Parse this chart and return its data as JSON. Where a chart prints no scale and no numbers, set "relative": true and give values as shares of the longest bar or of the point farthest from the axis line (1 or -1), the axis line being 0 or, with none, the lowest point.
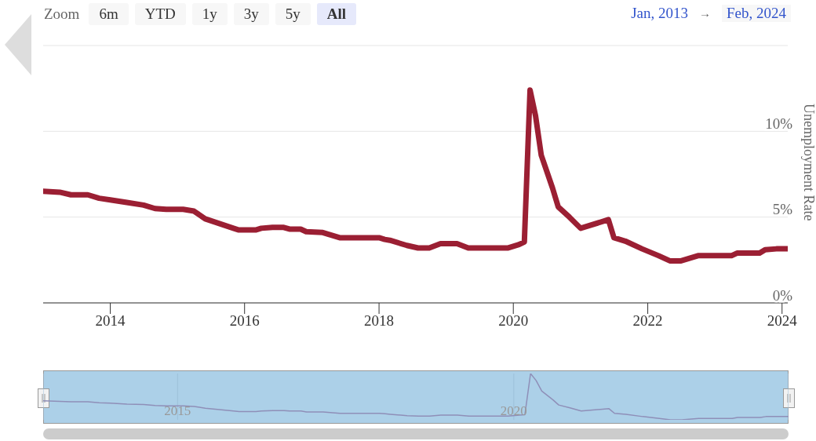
{
  "chart_data": [
    {
      "type": "line",
      "ylabel": "Unemployment Rate",
      "annotations": [
        "Zoom",
        "6m",
        "YTD",
        "1y",
        "3y",
        "5y",
        "All",
        "Jan, 2013",
        "→",
        "Feb, 2024"
      ],
      "x": [
        "2013-01",
        "2013-04",
        "2013-06",
        "2013-09",
        "2013-11",
        "2014-01",
        "2014-04",
        "2014-07",
        "2014-09",
        "2014-11",
        "2015-02",
        "2015-04",
        "2015-06",
        "2015-11",
        "2015-12",
        "2016-03",
        "2016-04",
        "2016-06",
        "2016-08",
        "2016-09",
        "2016-11",
        "2016-12",
        "2017-03",
        "2017-06",
        "2018-01",
        "2018-02",
        "2018-03",
        "2018-06",
        "2018-08",
        "2018-10",
        "2018-12",
        "2019-03",
        "2019-05",
        "2019-12",
        "2020-02",
        "2020-03",
        "2020-04",
        "2020-05",
        "2020-06",
        "2020-08",
        "2020-09",
        "2020-11",
        "2021-01",
        "2021-06",
        "2021-07",
        "2021-09",
        "2021-12",
        "2022-03",
        "2022-05",
        "2022-07",
        "2022-10",
        "2023-04",
        "2023-05",
        "2023-09",
        "2023-10",
        "2023-12",
        "2024-02"
      ],
      "series": [
        {
          "color": "#9b1f33",
          "values": [
            6.5,
            6.45,
            6.3,
            6.3,
            6.1,
            6.0,
            5.85,
            5.7,
            5.5,
            5.45,
            5.45,
            5.35,
            4.9,
            4.35,
            4.25,
            4.25,
            4.35,
            4.4,
            4.4,
            4.3,
            4.3,
            4.15,
            4.1,
            3.8,
            3.8,
            3.7,
            3.65,
            3.35,
            3.2,
            3.2,
            3.45,
            3.45,
            3.2,
            3.2,
            3.4,
            3.55,
            12.4,
            10.9,
            8.6,
            6.7,
            5.6,
            5.0,
            4.35,
            4.85,
            3.8,
            3.6,
            3.15,
            2.75,
            2.45,
            2.45,
            2.75,
            2.75,
            2.9,
            2.9,
            3.1,
            3.15,
            3.15
          ]
        }
      ],
      "xlim": [
        "2013-01",
        "2024-02"
      ],
      "xticks": [
        "2014",
        "2016",
        "2018",
        "2020",
        "2022",
        "2024"
      ],
      "ylim": [
        0,
        15
      ],
      "yticks": [
        {
          "value": 0,
          "label": "0%"
        },
        {
          "value": 5,
          "label": "5%"
        },
        {
          "value": 10,
          "label": "10%"
        },
        {
          "value": 15,
          "label": null
        }
      ],
      "grid": "y",
      "legend": false,
      "line_style": "solid",
      "marker": "none"
    },
    {
      "type": "line",
      "relative": true,
      "x": [
        "2013-01",
        "2013-04",
        "2013-06",
        "2013-09",
        "2013-11",
        "2014-01",
        "2014-04",
        "2014-07",
        "2014-09",
        "2014-11",
        "2015-02",
        "2015-04",
        "2015-06",
        "2015-11",
        "2015-12",
        "2016-03",
        "2016-04",
        "2016-06",
        "2016-08",
        "2016-09",
        "2016-11",
        "2016-12",
        "2017-03",
        "2017-06",
        "2018-01",
        "2018-02",
        "2018-03",
        "2018-06",
        "2018-08",
        "2018-10",
        "2018-12",
        "2019-03",
        "2019-05",
        "2019-12",
        "2020-02",
        "2020-03",
        "2020-04",
        "2020-05",
        "2020-06",
        "2020-08",
        "2020-09",
        "2020-11",
        "2021-01",
        "2021-06",
        "2021-07",
        "2021-09",
        "2021-12",
        "2022-03",
        "2022-05",
        "2022-07",
        "2022-10",
        "2023-04",
        "2023-05",
        "2023-09",
        "2023-10",
        "2023-12",
        "2024-02"
      ],
      "series": [
        {
          "color": "#8f8fb8",
          "values": [
            0.41,
            0.4,
            0.39,
            0.39,
            0.37,
            0.36,
            0.34,
            0.33,
            0.31,
            0.3,
            0.3,
            0.29,
            0.25,
            0.19,
            0.18,
            0.18,
            0.19,
            0.2,
            0.2,
            0.19,
            0.19,
            0.17,
            0.17,
            0.14,
            0.14,
            0.13,
            0.12,
            0.09,
            0.08,
            0.08,
            0.1,
            0.1,
            0.08,
            0.08,
            0.1,
            0.11,
            1,
            0.85,
            0.62,
            0.43,
            0.32,
            0.26,
            0.19,
            0.24,
            0.14,
            0.12,
            0.07,
            0.03,
            0,
            0,
            0.03,
            0.03,
            0.05,
            0.05,
            0.07,
            0.07,
            0.07
          ]
        }
      ],
      "xlim": [
        "2013-01",
        "2024-02"
      ],
      "xticks": [
        "2015",
        "2020"
      ],
      "grid": "x",
      "line_style": "solid",
      "marker": "none"
    }
  ]
}
